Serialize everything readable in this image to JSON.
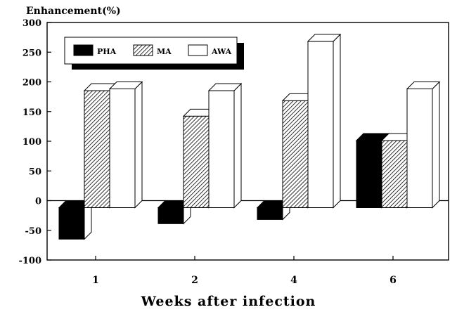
{
  "chart_data": {
    "type": "bar",
    "ylabel": "Enhancement(%)",
    "xlabel": "Weeks after infection",
    "categories": [
      "1",
      "2",
      "4",
      "6"
    ],
    "ylim": [
      -100,
      300
    ],
    "yticks": [
      -100,
      -50,
      0,
      50,
      100,
      150,
      200,
      250,
      300
    ],
    "series": [
      {
        "name": "PHA",
        "values": [
          -53,
          -27,
          -20,
          113
        ],
        "color": "#000000",
        "pattern": "solid"
      },
      {
        "name": "MA",
        "values": [
          197,
          154,
          180,
          113
        ],
        "color": "#ffffff",
        "pattern": "diagonal-hatch"
      },
      {
        "name": "AWA",
        "values": [
          200,
          197,
          280,
          200
        ],
        "color": "#ffffff",
        "pattern": "plain"
      }
    ],
    "legend_position": "top-left",
    "style": "3d-bars",
    "grid": false
  }
}
